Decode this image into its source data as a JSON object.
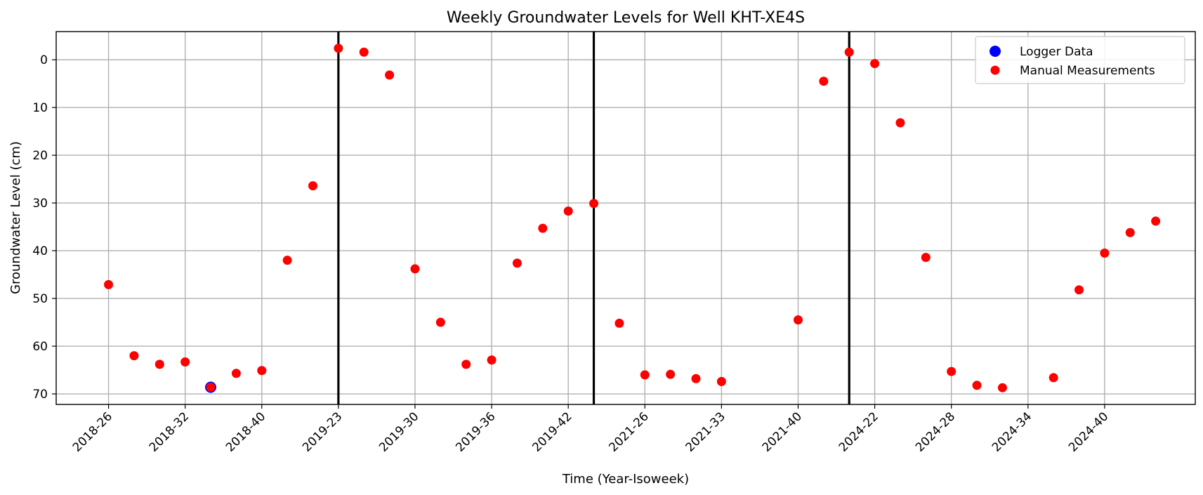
{
  "chart_data": {
    "type": "scatter",
    "title": "Weekly Groundwater Levels for Well KHT-XE4S",
    "xlabel": "Time (Year-Isoweek)",
    "ylabel": "Groundwater Level (cm)",
    "y_inverted": true,
    "ylim": [
      72.2,
      -5.9
    ],
    "yticks": [
      0,
      10,
      20,
      30,
      40,
      50,
      60,
      70
    ],
    "grid": true,
    "legend_position": "top-right",
    "colors": {
      "logger": "#0000ff",
      "manual": "#ff0000",
      "separator": "#000000"
    },
    "x_ticks": [
      {
        "index": 0,
        "label": "2018-26"
      },
      {
        "index": 3,
        "label": "2018-32"
      },
      {
        "index": 6,
        "label": "2018-40"
      },
      {
        "index": 9,
        "label": "2019-23"
      },
      {
        "index": 12,
        "label": "2019-30"
      },
      {
        "index": 15,
        "label": "2019-36"
      },
      {
        "index": 18,
        "label": "2019-42"
      },
      {
        "index": 21,
        "label": "2021-26"
      },
      {
        "index": 24,
        "label": "2021-33"
      },
      {
        "index": 27,
        "label": "2021-40"
      },
      {
        "index": 30,
        "label": "2024-22"
      },
      {
        "index": 33,
        "label": "2024-28"
      },
      {
        "index": 36,
        "label": "2024-34"
      },
      {
        "index": 39,
        "label": "2024-40"
      }
    ],
    "xlim_index": [
      -2.05,
      42.55
    ],
    "vertical_lines_at_index": [
      9,
      19,
      29
    ],
    "series": [
      {
        "name": "Logger Data",
        "color": "#0000ff",
        "points": [
          [
            4,
            68.6
          ]
        ]
      },
      {
        "name": "Manual Measurements",
        "color": "#ff0000",
        "points": [
          [
            0,
            47.1
          ],
          [
            1,
            62.0
          ],
          [
            2,
            63.8
          ],
          [
            3,
            63.3
          ],
          [
            4,
            68.6
          ],
          [
            5,
            65.7
          ],
          [
            6,
            65.1
          ],
          [
            7,
            42.0
          ],
          [
            8,
            26.4
          ],
          [
            9,
            -2.4
          ],
          [
            10,
            -1.6
          ],
          [
            11,
            3.2
          ],
          [
            12,
            43.8
          ],
          [
            13,
            55.0
          ],
          [
            14,
            63.8
          ],
          [
            15,
            62.9
          ],
          [
            16,
            42.6
          ],
          [
            17,
            35.3
          ],
          [
            18,
            31.7
          ],
          [
            19,
            30.1
          ],
          [
            20,
            55.2
          ],
          [
            21,
            66.0
          ],
          [
            22,
            65.9
          ],
          [
            23,
            66.8
          ],
          [
            24,
            67.4
          ],
          [
            27,
            54.5
          ],
          [
            28,
            4.5
          ],
          [
            29,
            -1.6
          ],
          [
            30,
            0.8
          ],
          [
            31,
            13.2
          ],
          [
            32,
            41.4
          ],
          [
            33,
            65.3
          ],
          [
            34,
            68.2
          ],
          [
            35,
            68.7
          ],
          [
            37,
            66.6
          ],
          [
            38,
            48.2
          ],
          [
            39,
            40.5
          ],
          [
            40,
            36.2
          ],
          [
            41,
            33.8
          ]
        ]
      }
    ]
  }
}
